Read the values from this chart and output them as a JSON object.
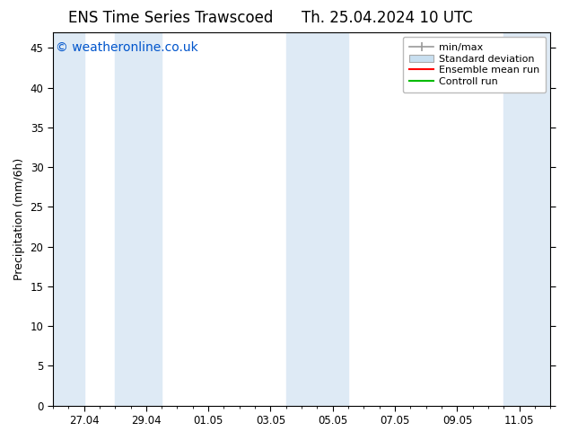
{
  "title_left": "ENS Time Series Trawscoed",
  "title_right": "Th. 25.04.2024 10 UTC",
  "ylabel": "Precipitation (mm/6h)",
  "watermark": "© weatheronline.co.uk",
  "watermark_color": "#0055cc",
  "ylim": [
    0,
    47
  ],
  "yticks": [
    0,
    5,
    10,
    15,
    20,
    25,
    30,
    35,
    40,
    45
  ],
  "bg_color": "#ffffff",
  "plot_bg_color": "#ffffff",
  "band_definitions": [
    [
      26.0,
      27.0
    ],
    [
      28.0,
      29.5
    ],
    [
      33.5,
      34.25
    ],
    [
      34.25,
      35.5
    ],
    [
      40.5,
      42.0
    ]
  ],
  "band_color": "#deeaf5",
  "xtick_labels": [
    "27.04",
    "29.04",
    "01.05",
    "03.05",
    "05.05",
    "07.05",
    "09.05",
    "11.05"
  ],
  "xtick_positions": [
    27.0,
    29.0,
    31.0,
    33.0,
    35.0,
    37.0,
    39.0,
    41.0
  ],
  "xlim": [
    26.0,
    42.0
  ],
  "legend_labels": [
    "min/max",
    "Standard deviation",
    "Ensemble mean run",
    "Controll run"
  ],
  "minmax_color": "#999999",
  "std_facecolor": "#c8dff0",
  "std_edgecolor": "#aaaaaa",
  "ens_color": "#ff0000",
  "ctrl_color": "#00bb00",
  "title_fontsize": 12,
  "label_fontsize": 9,
  "tick_fontsize": 8.5,
  "watermark_fontsize": 10,
  "legend_fontsize": 8
}
